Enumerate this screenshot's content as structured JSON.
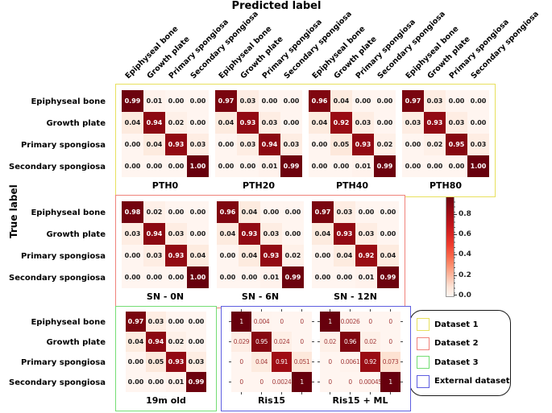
{
  "chart_data": {
    "type": "heatmap",
    "title": "Predicted label",
    "ylabel": "True label",
    "classes": [
      "Epiphyseal bone",
      "Growth plate",
      "Primary spongiosa",
      "Secondary spongiosa"
    ],
    "palette": {
      "cmap_low": "#fff5f0",
      "cmap_high": "#67000d",
      "diag_text": "#ffffff",
      "offdiag_text": "#1b1b1b",
      "external_offdiag_text": "#a43c3c"
    },
    "groups": [
      {
        "dataset": "Dataset 1",
        "border": "#e8e05e",
        "band": 0,
        "matrices": [
          {
            "name": "PTH0",
            "style": "plain",
            "cells": [
              [
                "0.99",
                "0.01",
                "0.00",
                "0.00"
              ],
              [
                "0.04",
                "0.94",
                "0.02",
                "0.00"
              ],
              [
                "0.00",
                "0.04",
                "0.93",
                "0.03"
              ],
              [
                "0.00",
                "0.00",
                "0.00",
                "1.00"
              ]
            ]
          },
          {
            "name": "PTH20",
            "style": "plain",
            "cells": [
              [
                "0.97",
                "0.03",
                "0.00",
                "0.00"
              ],
              [
                "0.04",
                "0.93",
                "0.03",
                "0.00"
              ],
              [
                "0.00",
                "0.03",
                "0.94",
                "0.03"
              ],
              [
                "0.00",
                "0.00",
                "0.01",
                "0.99"
              ]
            ]
          },
          {
            "name": "PTH40",
            "style": "plain",
            "cells": [
              [
                "0.96",
                "0.04",
                "0.00",
                "0.00"
              ],
              [
                "0.04",
                "0.92",
                "0.03",
                "0.00"
              ],
              [
                "0.00",
                "0.05",
                "0.93",
                "0.02"
              ],
              [
                "0.00",
                "0.00",
                "0.01",
                "0.99"
              ]
            ]
          },
          {
            "name": "PTH80",
            "style": "plain",
            "cells": [
              [
                "0.97",
                "0.03",
                "0.00",
                "0.00"
              ],
              [
                "0.03",
                "0.93",
                "0.03",
                "0.00"
              ],
              [
                "0.00",
                "0.02",
                "0.95",
                "0.03"
              ],
              [
                "0.00",
                "0.00",
                "0.00",
                "1.00"
              ]
            ]
          }
        ]
      },
      {
        "dataset": "Dataset 2",
        "border": "#f0837b",
        "band": 1,
        "matrices": [
          {
            "name": "SN - 0N",
            "style": "plain",
            "cells": [
              [
                "0.98",
                "0.02",
                "0.00",
                "0.00"
              ],
              [
                "0.03",
                "0.94",
                "0.03",
                "0.00"
              ],
              [
                "0.00",
                "0.03",
                "0.93",
                "0.04"
              ],
              [
                "0.00",
                "0.00",
                "0.00",
                "1.00"
              ]
            ]
          },
          {
            "name": "SN - 6N",
            "style": "plain",
            "cells": [
              [
                "0.96",
                "0.04",
                "0.00",
                "0.00"
              ],
              [
                "0.04",
                "0.93",
                "0.03",
                "0.00"
              ],
              [
                "0.00",
                "0.04",
                "0.93",
                "0.02"
              ],
              [
                "0.00",
                "0.00",
                "0.01",
                "0.99"
              ]
            ]
          },
          {
            "name": "SN - 12N",
            "style": "plain",
            "cells": [
              [
                "0.97",
                "0.03",
                "0.00",
                "0.00"
              ],
              [
                "0.04",
                "0.93",
                "0.03",
                "0.00"
              ],
              [
                "0.00",
                "0.04",
                "0.92",
                "0.04"
              ],
              [
                "0.00",
                "0.00",
                "0.01",
                "0.99"
              ]
            ]
          }
        ]
      },
      {
        "dataset": "Dataset 3",
        "border": "#74dd74",
        "band": 2,
        "matrices": [
          {
            "name": "19m old",
            "style": "plain",
            "cells": [
              [
                "0.97",
                "0.03",
                "0.00",
                "0.00"
              ],
              [
                "0.04",
                "0.94",
                "0.02",
                "0.00"
              ],
              [
                "0.00",
                "0.05",
                "0.93",
                "0.03"
              ],
              [
                "0.00",
                "0.00",
                "0.01",
                "0.99"
              ]
            ]
          }
        ]
      },
      {
        "dataset": "External dataset",
        "border": "#5e5ee0",
        "band": 2,
        "matrices": [
          {
            "name": "Ris15",
            "style": "ticked",
            "cells": [
              [
                "1",
                "0.004",
                "0",
                "0"
              ],
              [
                "0.029",
                "0.95",
                "0.024",
                "0"
              ],
              [
                "0",
                "0.04",
                "0.91",
                "0.051"
              ],
              [
                "0",
                "0",
                "0.0024",
                "1"
              ]
            ]
          },
          {
            "name": "Ris15 + ML",
            "style": "ticked",
            "cells": [
              [
                "1",
                "0.0026",
                "0",
                "0"
              ],
              [
                "0.02",
                "0.96",
                "0.02",
                "0"
              ],
              [
                "0",
                "0.0061",
                "0.92",
                "0.073"
              ],
              [
                "0",
                "0",
                "0.00045",
                "1"
              ]
            ]
          }
        ]
      }
    ],
    "colorbar": {
      "tick_labels": [
        "0.8",
        "0.6",
        "0.4",
        "0.2",
        "0.0"
      ],
      "tick_values": [
        0.8,
        0.6,
        0.4,
        0.2,
        0.0
      ],
      "vmin": 0.0,
      "vmax": 0.97
    },
    "legend": {
      "items": [
        {
          "label": "Dataset 1",
          "color": "#e8e05e"
        },
        {
          "label": "Dataset 2",
          "color": "#f0837b"
        },
        {
          "label": "Dataset 3",
          "color": "#74dd74"
        },
        {
          "label": "External dataset",
          "color": "#5e5ee0"
        }
      ]
    }
  }
}
